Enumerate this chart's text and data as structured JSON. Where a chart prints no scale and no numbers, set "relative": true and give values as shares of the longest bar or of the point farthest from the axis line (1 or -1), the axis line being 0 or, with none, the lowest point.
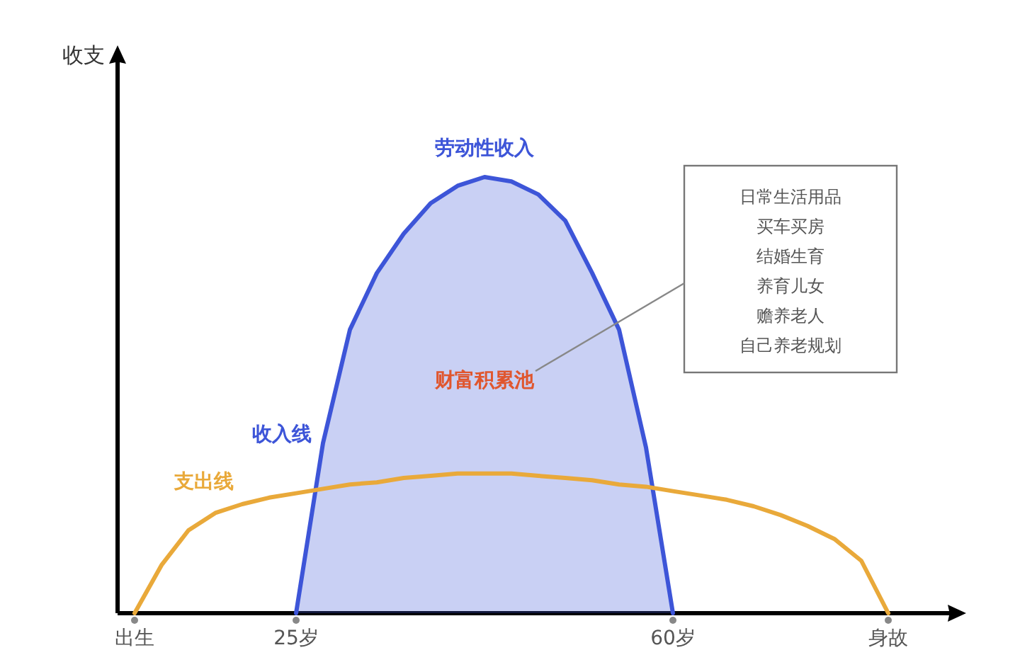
{
  "chart_data": {
    "type": "line",
    "relative": true,
    "categories": [
      "出生",
      null,
      null,
      null,
      null,
      null,
      "25岁",
      null,
      null,
      null,
      null,
      null,
      null,
      null,
      null,
      null,
      null,
      null,
      null,
      null,
      "60岁",
      null,
      null,
      null,
      null,
      null,
      null,
      null,
      "身故"
    ],
    "series": [
      {
        "name": "收入线",
        "type": "area",
        "color": "#3d55d8",
        "values": [
          null,
          null,
          null,
          null,
          null,
          null,
          0,
          0.39,
          0.65,
          0.78,
          0.87,
          0.94,
          0.98,
          1.0,
          0.99,
          0.96,
          0.9,
          0.78,
          0.65,
          0.38,
          0,
          null,
          null,
          null,
          null,
          null,
          null,
          null,
          null
        ]
      },
      {
        "name": "支出线",
        "color": "#e9a93a",
        "values": [
          0,
          0.11,
          0.19,
          0.23,
          0.25,
          0.265,
          0.275,
          0.285,
          0.295,
          0.3,
          0.31,
          0.315,
          0.32,
          0.32,
          0.32,
          0.315,
          0.31,
          0.305,
          0.295,
          0.29,
          0.28,
          0.27,
          0.26,
          0.245,
          0.225,
          0.2,
          0.17,
          0.12,
          0
        ]
      }
    ],
    "annotations": [
      "收支",
      "劳动性收入",
      "财富积累池",
      "日常生活用品",
      "买车买房",
      "结婚生育",
      "养育儿女",
      "赡养老人",
      "自己养老规划"
    ]
  }
}
